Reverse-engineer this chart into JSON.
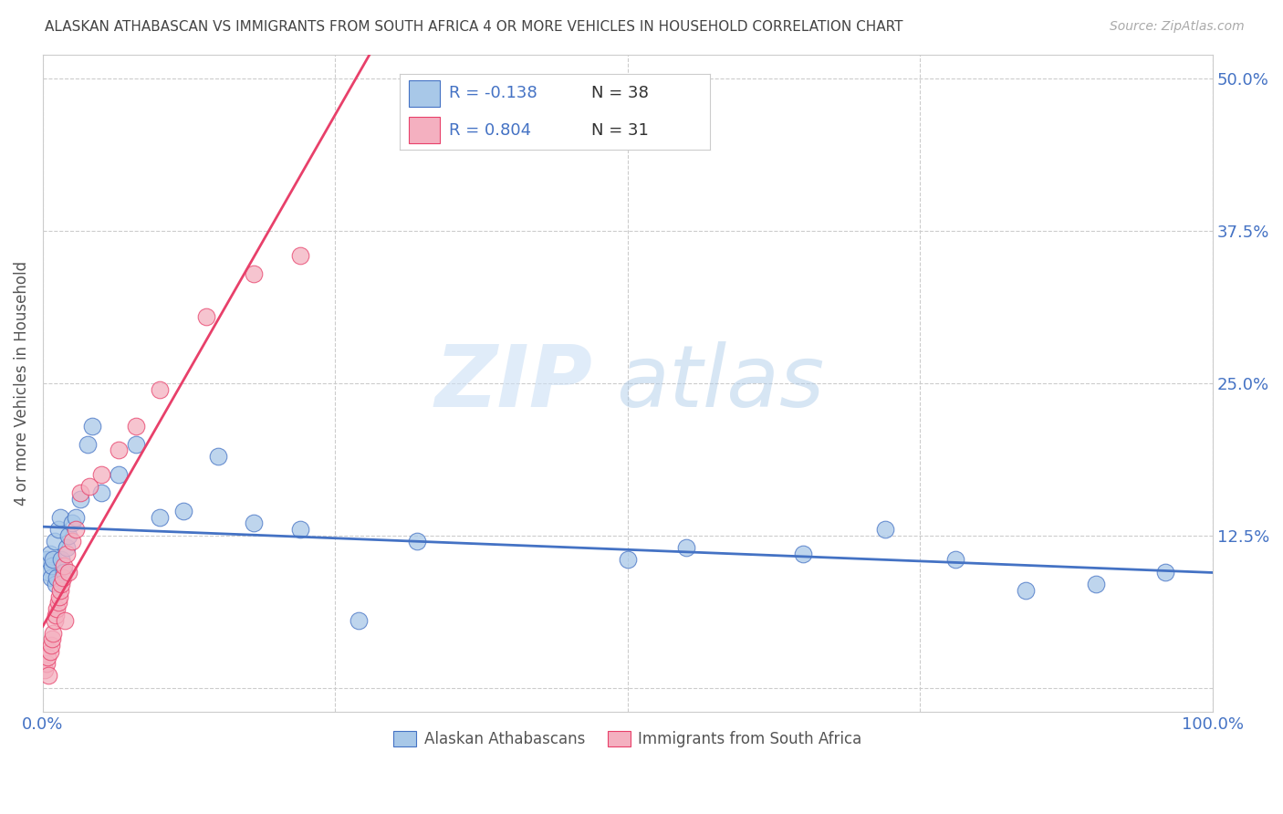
{
  "title": "ALASKAN ATHABASCAN VS IMMIGRANTS FROM SOUTH AFRICA 4 OR MORE VEHICLES IN HOUSEHOLD CORRELATION CHART",
  "source": "Source: ZipAtlas.com",
  "ylabel": "4 or more Vehicles in Household",
  "xlabel": "",
  "xlim": [
    0,
    1.0
  ],
  "ylim": [
    -0.02,
    0.52
  ],
  "xticks": [
    0.0,
    0.25,
    0.5,
    0.75,
    1.0
  ],
  "xticklabels": [
    "0.0%",
    "",
    "",
    "",
    "100.0%"
  ],
  "yticks": [
    0.0,
    0.125,
    0.25,
    0.375,
    0.5
  ],
  "yticklabels": [
    "",
    "12.5%",
    "25.0%",
    "37.5%",
    "50.0%"
  ],
  "blue_R": -0.138,
  "blue_N": 38,
  "pink_R": 0.804,
  "pink_N": 31,
  "watermark_zip": "ZIP",
  "watermark_atlas": "atlas",
  "blue_scatter_x": [
    0.003,
    0.005,
    0.006,
    0.007,
    0.008,
    0.009,
    0.01,
    0.011,
    0.012,
    0.013,
    0.015,
    0.016,
    0.018,
    0.02,
    0.022,
    0.025,
    0.028,
    0.032,
    0.038,
    0.042,
    0.05,
    0.065,
    0.08,
    0.1,
    0.12,
    0.15,
    0.18,
    0.22,
    0.27,
    0.32,
    0.5,
    0.55,
    0.65,
    0.72,
    0.78,
    0.84,
    0.9,
    0.96
  ],
  "blue_scatter_y": [
    0.105,
    0.095,
    0.11,
    0.09,
    0.1,
    0.105,
    0.12,
    0.085,
    0.09,
    0.13,
    0.14,
    0.105,
    0.095,
    0.115,
    0.125,
    0.135,
    0.14,
    0.155,
    0.2,
    0.215,
    0.16,
    0.175,
    0.2,
    0.14,
    0.145,
    0.19,
    0.135,
    0.13,
    0.055,
    0.12,
    0.105,
    0.115,
    0.11,
    0.13,
    0.105,
    0.08,
    0.085,
    0.095
  ],
  "pink_scatter_x": [
    0.002,
    0.003,
    0.004,
    0.005,
    0.006,
    0.007,
    0.008,
    0.009,
    0.01,
    0.011,
    0.012,
    0.013,
    0.014,
    0.015,
    0.016,
    0.017,
    0.018,
    0.019,
    0.02,
    0.022,
    0.025,
    0.028,
    0.032,
    0.04,
    0.05,
    0.065,
    0.08,
    0.1,
    0.14,
    0.18,
    0.22
  ],
  "pink_scatter_y": [
    0.015,
    0.02,
    0.025,
    0.01,
    0.03,
    0.035,
    0.04,
    0.045,
    0.055,
    0.06,
    0.065,
    0.07,
    0.075,
    0.08,
    0.085,
    0.09,
    0.1,
    0.055,
    0.11,
    0.095,
    0.12,
    0.13,
    0.16,
    0.165,
    0.175,
    0.195,
    0.215,
    0.245,
    0.305,
    0.34,
    0.355
  ],
  "blue_color": "#a8c8e8",
  "pink_color": "#f4b0c0",
  "blue_line_color": "#4472c4",
  "pink_line_color": "#e8406a",
  "legend_blue_label": "Alaskan Athabascans",
  "legend_pink_label": "Immigrants from South Africa",
  "background_color": "#ffffff",
  "grid_color": "#cccccc",
  "tick_color": "#4472c4",
  "r_value_color": "#4472c4",
  "n_label_color": "#333333"
}
